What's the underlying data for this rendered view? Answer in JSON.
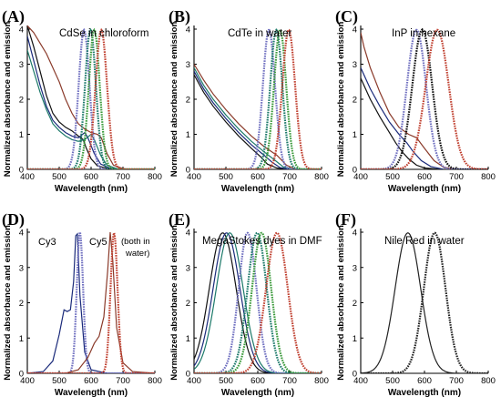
{
  "figure": {
    "colors": {
      "black": "#111111",
      "navy": "#1a2a7a",
      "purple": "#7070c0",
      "teal": "#1d7a6a",
      "green": "#3a9a3a",
      "brown": "#8a3a2a",
      "red": "#c04030",
      "dark": "#222222"
    }
  },
  "chart_data": [
    {
      "type": "line",
      "panel_label": "(A)",
      "title": "CdSe in chloroform",
      "xlabel": "Wavelength (nm)",
      "ylabel": "Normalized absorbance and emission",
      "xlim": [
        400,
        800
      ],
      "ylim": [
        0,
        4
      ],
      "xticks": [
        "400",
        "500",
        "600",
        "700",
        "800"
      ],
      "yticks": [
        "0",
        "1",
        "2",
        "3",
        "4"
      ],
      "series": [
        {
          "kind": "absorbance",
          "color": "black",
          "points": [
            [
              400,
              4.1
            ],
            [
              420,
              3.5
            ],
            [
              440,
              2.8
            ],
            [
              460,
              2.1
            ],
            [
              480,
              1.6
            ],
            [
              500,
              1.35
            ],
            [
              520,
              1.2
            ],
            [
              540,
              1.1
            ],
            [
              560,
              0.95
            ],
            [
              575,
              0.85
            ],
            [
              585,
              0.6
            ],
            [
              600,
              0.3
            ],
            [
              620,
              0.1
            ],
            [
              650,
              0.03
            ],
            [
              700,
              0
            ]
          ]
        },
        {
          "kind": "absorbance",
          "color": "navy",
          "points": [
            [
              400,
              3.8
            ],
            [
              420,
              3.1
            ],
            [
              440,
              2.4
            ],
            [
              460,
              1.8
            ],
            [
              480,
              1.4
            ],
            [
              500,
              1.2
            ],
            [
              520,
              1.05
            ],
            [
              540,
              0.95
            ],
            [
              560,
              0.9
            ],
            [
              580,
              1.05
            ],
            [
              590,
              0.9
            ],
            [
              610,
              0.45
            ],
            [
              630,
              0.15
            ],
            [
              660,
              0.03
            ],
            [
              700,
              0
            ]
          ]
        },
        {
          "kind": "absorbance",
          "color": "teal",
          "points": [
            [
              400,
              3.4
            ],
            [
              420,
              2.8
            ],
            [
              440,
              2.2
            ],
            [
              460,
              1.7
            ],
            [
              480,
              1.3
            ],
            [
              500,
              1.1
            ],
            [
              520,
              0.95
            ],
            [
              540,
              0.85
            ],
            [
              560,
              0.8
            ],
            [
              580,
              0.85
            ],
            [
              600,
              1.0
            ],
            [
              610,
              0.85
            ],
            [
              630,
              0.4
            ],
            [
              650,
              0.12
            ],
            [
              680,
              0.02
            ],
            [
              700,
              0
            ]
          ]
        },
        {
          "kind": "absorbance",
          "color": "brown",
          "points": [
            [
              400,
              4.1
            ],
            [
              420,
              3.9
            ],
            [
              440,
              3.6
            ],
            [
              460,
              3.3
            ],
            [
              480,
              2.9
            ],
            [
              500,
              2.5
            ],
            [
              520,
              2.0
            ],
            [
              540,
              1.6
            ],
            [
              560,
              1.3
            ],
            [
              580,
              1.15
            ],
            [
              600,
              1.05
            ],
            [
              620,
              1.0
            ],
            [
              632,
              0.9
            ],
            [
              650,
              0.45
            ],
            [
              670,
              0.12
            ],
            [
              700,
              0.02
            ],
            [
              720,
              0
            ]
          ]
        },
        {
          "kind": "emission",
          "color": "purple",
          "peak": 578,
          "width": 17
        },
        {
          "kind": "emission",
          "color": "teal",
          "peak": 598,
          "width": 17
        },
        {
          "kind": "emission",
          "color": "green",
          "peak": 610,
          "width": 17
        },
        {
          "kind": "emission",
          "color": "red",
          "peak": 632,
          "width": 18
        }
      ]
    },
    {
      "type": "line",
      "panel_label": "(B)",
      "title": "CdTe in water",
      "xlabel": "Wavelength (nm)",
      "ylabel": "Normalized absorbance and emission",
      "xlim": [
        400,
        800
      ],
      "ylim": [
        0,
        4
      ],
      "xticks": [
        "400",
        "500",
        "600",
        "700",
        "800"
      ],
      "yticks": [
        "0",
        "1",
        "2",
        "3",
        "4"
      ],
      "series": [
        {
          "kind": "absorbance",
          "color": "black",
          "points": [
            [
              400,
              2.7
            ],
            [
              430,
              2.2
            ],
            [
              460,
              1.8
            ],
            [
              500,
              1.35
            ],
            [
              540,
              0.95
            ],
            [
              580,
              0.6
            ],
            [
              610,
              0.35
            ],
            [
              630,
              0.15
            ],
            [
              660,
              0.04
            ],
            [
              700,
              0
            ]
          ]
        },
        {
          "kind": "absorbance",
          "color": "navy",
          "points": [
            [
              400,
              2.8
            ],
            [
              430,
              2.3
            ],
            [
              460,
              1.9
            ],
            [
              500,
              1.45
            ],
            [
              540,
              1.05
            ],
            [
              580,
              0.7
            ],
            [
              620,
              0.4
            ],
            [
              645,
              0.2
            ],
            [
              670,
              0.05
            ],
            [
              700,
              0
            ]
          ]
        },
        {
          "kind": "absorbance",
          "color": "teal",
          "points": [
            [
              400,
              2.9
            ],
            [
              430,
              2.4
            ],
            [
              460,
              2.0
            ],
            [
              500,
              1.55
            ],
            [
              540,
              1.15
            ],
            [
              580,
              0.8
            ],
            [
              620,
              0.5
            ],
            [
              655,
              0.25
            ],
            [
              680,
              0.07
            ],
            [
              710,
              0
            ]
          ]
        },
        {
          "kind": "absorbance",
          "color": "brown",
          "points": [
            [
              400,
              3.0
            ],
            [
              430,
              2.55
            ],
            [
              460,
              2.15
            ],
            [
              500,
              1.7
            ],
            [
              540,
              1.3
            ],
            [
              580,
              0.95
            ],
            [
              620,
              0.65
            ],
            [
              660,
              0.4
            ],
            [
              690,
              0.12
            ],
            [
              720,
              0
            ]
          ]
        },
        {
          "kind": "emission",
          "color": "purple",
          "peak": 635,
          "width": 19
        },
        {
          "kind": "emission",
          "color": "teal",
          "peak": 658,
          "width": 19
        },
        {
          "kind": "emission",
          "color": "green",
          "peak": 670,
          "width": 19
        },
        {
          "kind": "emission",
          "color": "red",
          "peak": 697,
          "width": 20
        }
      ]
    },
    {
      "type": "line",
      "panel_label": "(C)",
      "title": "InP in hexane",
      "xlabel": "Wavelength (nm)",
      "ylabel": "Normalized absorbance and emission",
      "xlim": [
        400,
        800
      ],
      "ylim": [
        0,
        4
      ],
      "xticks": [
        "400",
        "500",
        "600",
        "700",
        "800"
      ],
      "yticks": [
        "0",
        "1",
        "2",
        "3",
        "4"
      ],
      "series": [
        {
          "kind": "absorbance",
          "color": "black",
          "points": [
            [
              400,
              2.6
            ],
            [
              430,
              2.0
            ],
            [
              460,
              1.5
            ],
            [
              490,
              1.05
            ],
            [
              510,
              0.75
            ],
            [
              530,
              0.5
            ],
            [
              550,
              0.3
            ],
            [
              575,
              0.12
            ],
            [
              600,
              0.04
            ],
            [
              650,
              0
            ]
          ]
        },
        {
          "kind": "absorbance",
          "color": "navy",
          "points": [
            [
              400,
              2.9
            ],
            [
              430,
              2.3
            ],
            [
              460,
              1.8
            ],
            [
              490,
              1.35
            ],
            [
              520,
              1.0
            ],
            [
              545,
              0.75
            ],
            [
              565,
              0.5
            ],
            [
              590,
              0.25
            ],
            [
              620,
              0.08
            ],
            [
              660,
              0
            ]
          ]
        },
        {
          "kind": "absorbance",
          "color": "brown",
          "points": [
            [
              400,
              3.9
            ],
            [
              410,
              3.5
            ],
            [
              430,
              2.9
            ],
            [
              460,
              2.2
            ],
            [
              490,
              1.6
            ],
            [
              520,
              1.2
            ],
            [
              550,
              1.0
            ],
            [
              575,
              0.9
            ],
            [
              600,
              0.6
            ],
            [
              630,
              0.25
            ],
            [
              660,
              0.06
            ],
            [
              700,
              0
            ]
          ]
        },
        {
          "kind": "emission",
          "color": "purple",
          "peak": 575,
          "width": 30
        },
        {
          "kind": "emission",
          "color": "black",
          "peak": 593,
          "width": 31
        },
        {
          "kind": "emission",
          "color": "red",
          "peak": 640,
          "width": 36
        }
      ]
    },
    {
      "type": "line",
      "panel_label": "(D)",
      "title": "",
      "annotations": [
        "Cy3",
        "Cy5",
        "(both in",
        "water)"
      ],
      "xlabel": "Wavelength (nm)",
      "ylabel": "Normalized absorbance and emission",
      "xlim": [
        400,
        800
      ],
      "ylim": [
        0,
        4
      ],
      "xticks": [
        "400",
        "500",
        "600",
        "700",
        "800"
      ],
      "yticks": [
        "0",
        "1",
        "2",
        "3",
        "4"
      ],
      "series": [
        {
          "kind": "absorbance",
          "color": "navy",
          "points": [
            [
              400,
              0
            ],
            [
              450,
              0.05
            ],
            [
              480,
              0.35
            ],
            [
              500,
              1.1
            ],
            [
              515,
              1.8
            ],
            [
              525,
              1.75
            ],
            [
              535,
              1.8
            ],
            [
              545,
              2.6
            ],
            [
              552,
              3.9
            ],
            [
              557,
              3.95
            ],
            [
              565,
              2.2
            ],
            [
              580,
              0.6
            ],
            [
              600,
              0.1
            ],
            [
              650,
              0
            ],
            [
              800,
              0
            ]
          ]
        },
        {
          "kind": "emission",
          "color": "purple",
          "peak": 565,
          "width": 10
        },
        {
          "kind": "absorbance",
          "color": "brown",
          "points": [
            [
              400,
              0
            ],
            [
              520,
              0
            ],
            [
              560,
              0.1
            ],
            [
              590,
              0.45
            ],
            [
              610,
              0.85
            ],
            [
              625,
              1.05
            ],
            [
              640,
              1.6
            ],
            [
              652,
              2.9
            ],
            [
              660,
              4.0
            ],
            [
              668,
              3.2
            ],
            [
              680,
              1.3
            ],
            [
              700,
              0.3
            ],
            [
              730,
              0.05
            ],
            [
              800,
              0
            ]
          ]
        },
        {
          "kind": "emission",
          "color": "red",
          "peak": 672,
          "width": 11
        }
      ]
    },
    {
      "type": "line",
      "panel_label": "(E)",
      "title": "MegaStokes dyes in DMF",
      "xlabel": "Wavelength (nm)",
      "ylabel": "Normalized absorbance and emission",
      "xlim": [
        400,
        800
      ],
      "ylim": [
        0,
        4
      ],
      "xticks": [
        "400",
        "500",
        "600",
        "700",
        "800"
      ],
      "yticks": [
        "0",
        "1",
        "2",
        "3",
        "4"
      ],
      "series": [
        {
          "kind": "absorbance",
          "color": "black",
          "peak": 490,
          "width": 42
        },
        {
          "kind": "absorbance",
          "color": "navy",
          "peak": 502,
          "width": 42
        },
        {
          "kind": "absorbance",
          "color": "teal",
          "peak": 512,
          "width": 42
        },
        {
          "kind": "emission",
          "color": "purple",
          "peak": 568,
          "width": 28
        },
        {
          "kind": "emission",
          "color": "teal",
          "peak": 598,
          "width": 30
        },
        {
          "kind": "emission",
          "color": "green",
          "peak": 612,
          "width": 30
        },
        {
          "kind": "emission",
          "color": "red",
          "peak": 660,
          "width": 34
        }
      ]
    },
    {
      "type": "line",
      "panel_label": "(F)",
      "title": "Nile Red in water",
      "xlabel": "Wavelength (nm)",
      "ylabel": "Normalized absorbance and emission",
      "xlim": [
        400,
        800
      ],
      "ylim": [
        0,
        4
      ],
      "xticks": [
        "400",
        "500",
        "600",
        "700",
        "800"
      ],
      "yticks": [
        "0",
        "1",
        "2",
        "3",
        "4"
      ],
      "series": [
        {
          "kind": "absorbance",
          "color": "dark",
          "peak": 548,
          "width": 40
        },
        {
          "kind": "emission",
          "color": "dark",
          "peak": 632,
          "width": 34
        }
      ]
    }
  ]
}
